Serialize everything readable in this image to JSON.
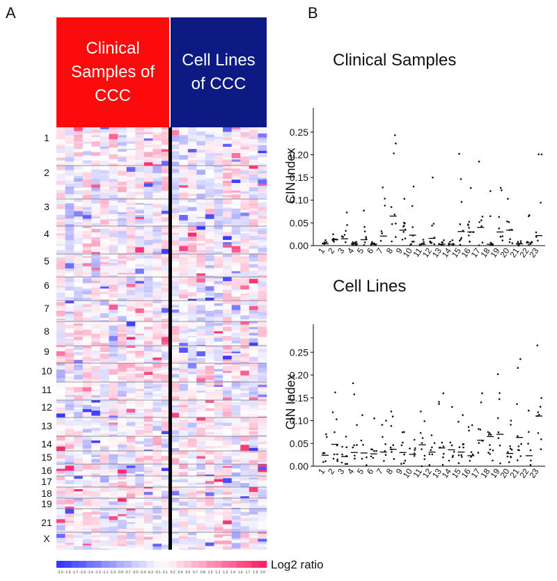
{
  "panels": {
    "a": "A",
    "b": "B"
  },
  "heatmap": {
    "header_left": "Clinical\nSamples of\nCCC",
    "header_right": "Cell Lines\nof  CCC",
    "header_left_color": "#fb0b0b",
    "header_right_color": "#0d1a84",
    "chromosomes": [
      "1",
      "2",
      "3",
      "4",
      "5",
      "6",
      "7",
      "8",
      "9",
      "10",
      "11",
      "12",
      "13",
      "14",
      "15",
      "16",
      "17",
      "18",
      "19",
      "21",
      "X"
    ],
    "legend_label": "Log2 ratio",
    "legend_ticks": [
      "-2.0",
      "-1.9",
      "-1.7",
      "-1.6",
      "-1.4",
      "-1.3",
      "-1.1",
      "-1.0",
      "-0.8",
      "-0.7",
      "-0.5",
      "-0.4",
      "-0.2",
      "-0.1",
      "0.1",
      "0.2",
      "0.4",
      "0.5",
      "0.7",
      "0.8",
      "1.0",
      "1.1",
      "1.3",
      "1.4",
      "1.6",
      "1.7",
      "1.9",
      "2.0"
    ]
  },
  "chart_data": [
    {
      "type": "scatter",
      "title": "Clinical Samples",
      "ylabel": "CIN Index",
      "xlabel": "",
      "ylim": [
        0,
        0.26
      ],
      "yticks": [
        "0.00",
        "0.05",
        "0.10",
        "0.15",
        "0.20",
        "0.25"
      ],
      "categories": [
        "1",
        "2",
        "3",
        "4",
        "5",
        "6",
        "7",
        "8",
        "9",
        "10",
        "11",
        "12",
        "13",
        "14",
        "15",
        "16",
        "17",
        "18",
        "19",
        "20",
        "21",
        "22",
        "23"
      ],
      "medians": [
        0.004,
        0.013,
        0.015,
        0.004,
        0.013,
        0.003,
        0.021,
        0.065,
        0.034,
        0.023,
        0.003,
        0.016,
        0.003,
        0.003,
        0.031,
        0.03,
        0.04,
        0.003,
        0.03,
        0.034,
        0.004,
        0.006,
        0.022
      ],
      "maxima": [
        0.012,
        0.025,
        0.073,
        0.008,
        0.077,
        0.008,
        0.128,
        0.243,
        0.103,
        0.13,
        0.013,
        0.15,
        0.012,
        0.012,
        0.202,
        0.127,
        0.185,
        0.12,
        0.127,
        0.103,
        0.01,
        0.067,
        0.201
      ]
    },
    {
      "type": "scatter",
      "title": "Cell Lines",
      "ylabel": "CIN Index",
      "xlabel": "",
      "ylim": [
        0,
        0.27
      ],
      "yticks": [
        "0.00",
        "0.05",
        "0.10",
        "0.15",
        "0.20",
        "0.25"
      ],
      "categories": [
        "1",
        "2",
        "3",
        "4",
        "5",
        "6",
        "7",
        "8",
        "9",
        "10",
        "11",
        "12",
        "13",
        "14",
        "15",
        "16",
        "17",
        "18",
        "19",
        "20",
        "21",
        "22",
        "23"
      ],
      "medians": [
        0.024,
        0.048,
        0.021,
        0.03,
        0.029,
        0.027,
        0.031,
        0.037,
        0.03,
        0.026,
        0.047,
        0.031,
        0.04,
        0.036,
        0.031,
        0.023,
        0.057,
        0.065,
        0.07,
        0.028,
        0.063,
        0.023,
        0.11
      ],
      "maxima": [
        0.07,
        0.162,
        0.065,
        0.182,
        0.112,
        0.105,
        0.1,
        0.12,
        0.075,
        0.058,
        0.12,
        0.068,
        0.16,
        0.13,
        0.112,
        0.09,
        0.16,
        0.075,
        0.202,
        0.1,
        0.235,
        0.122,
        0.265
      ]
    }
  ]
}
